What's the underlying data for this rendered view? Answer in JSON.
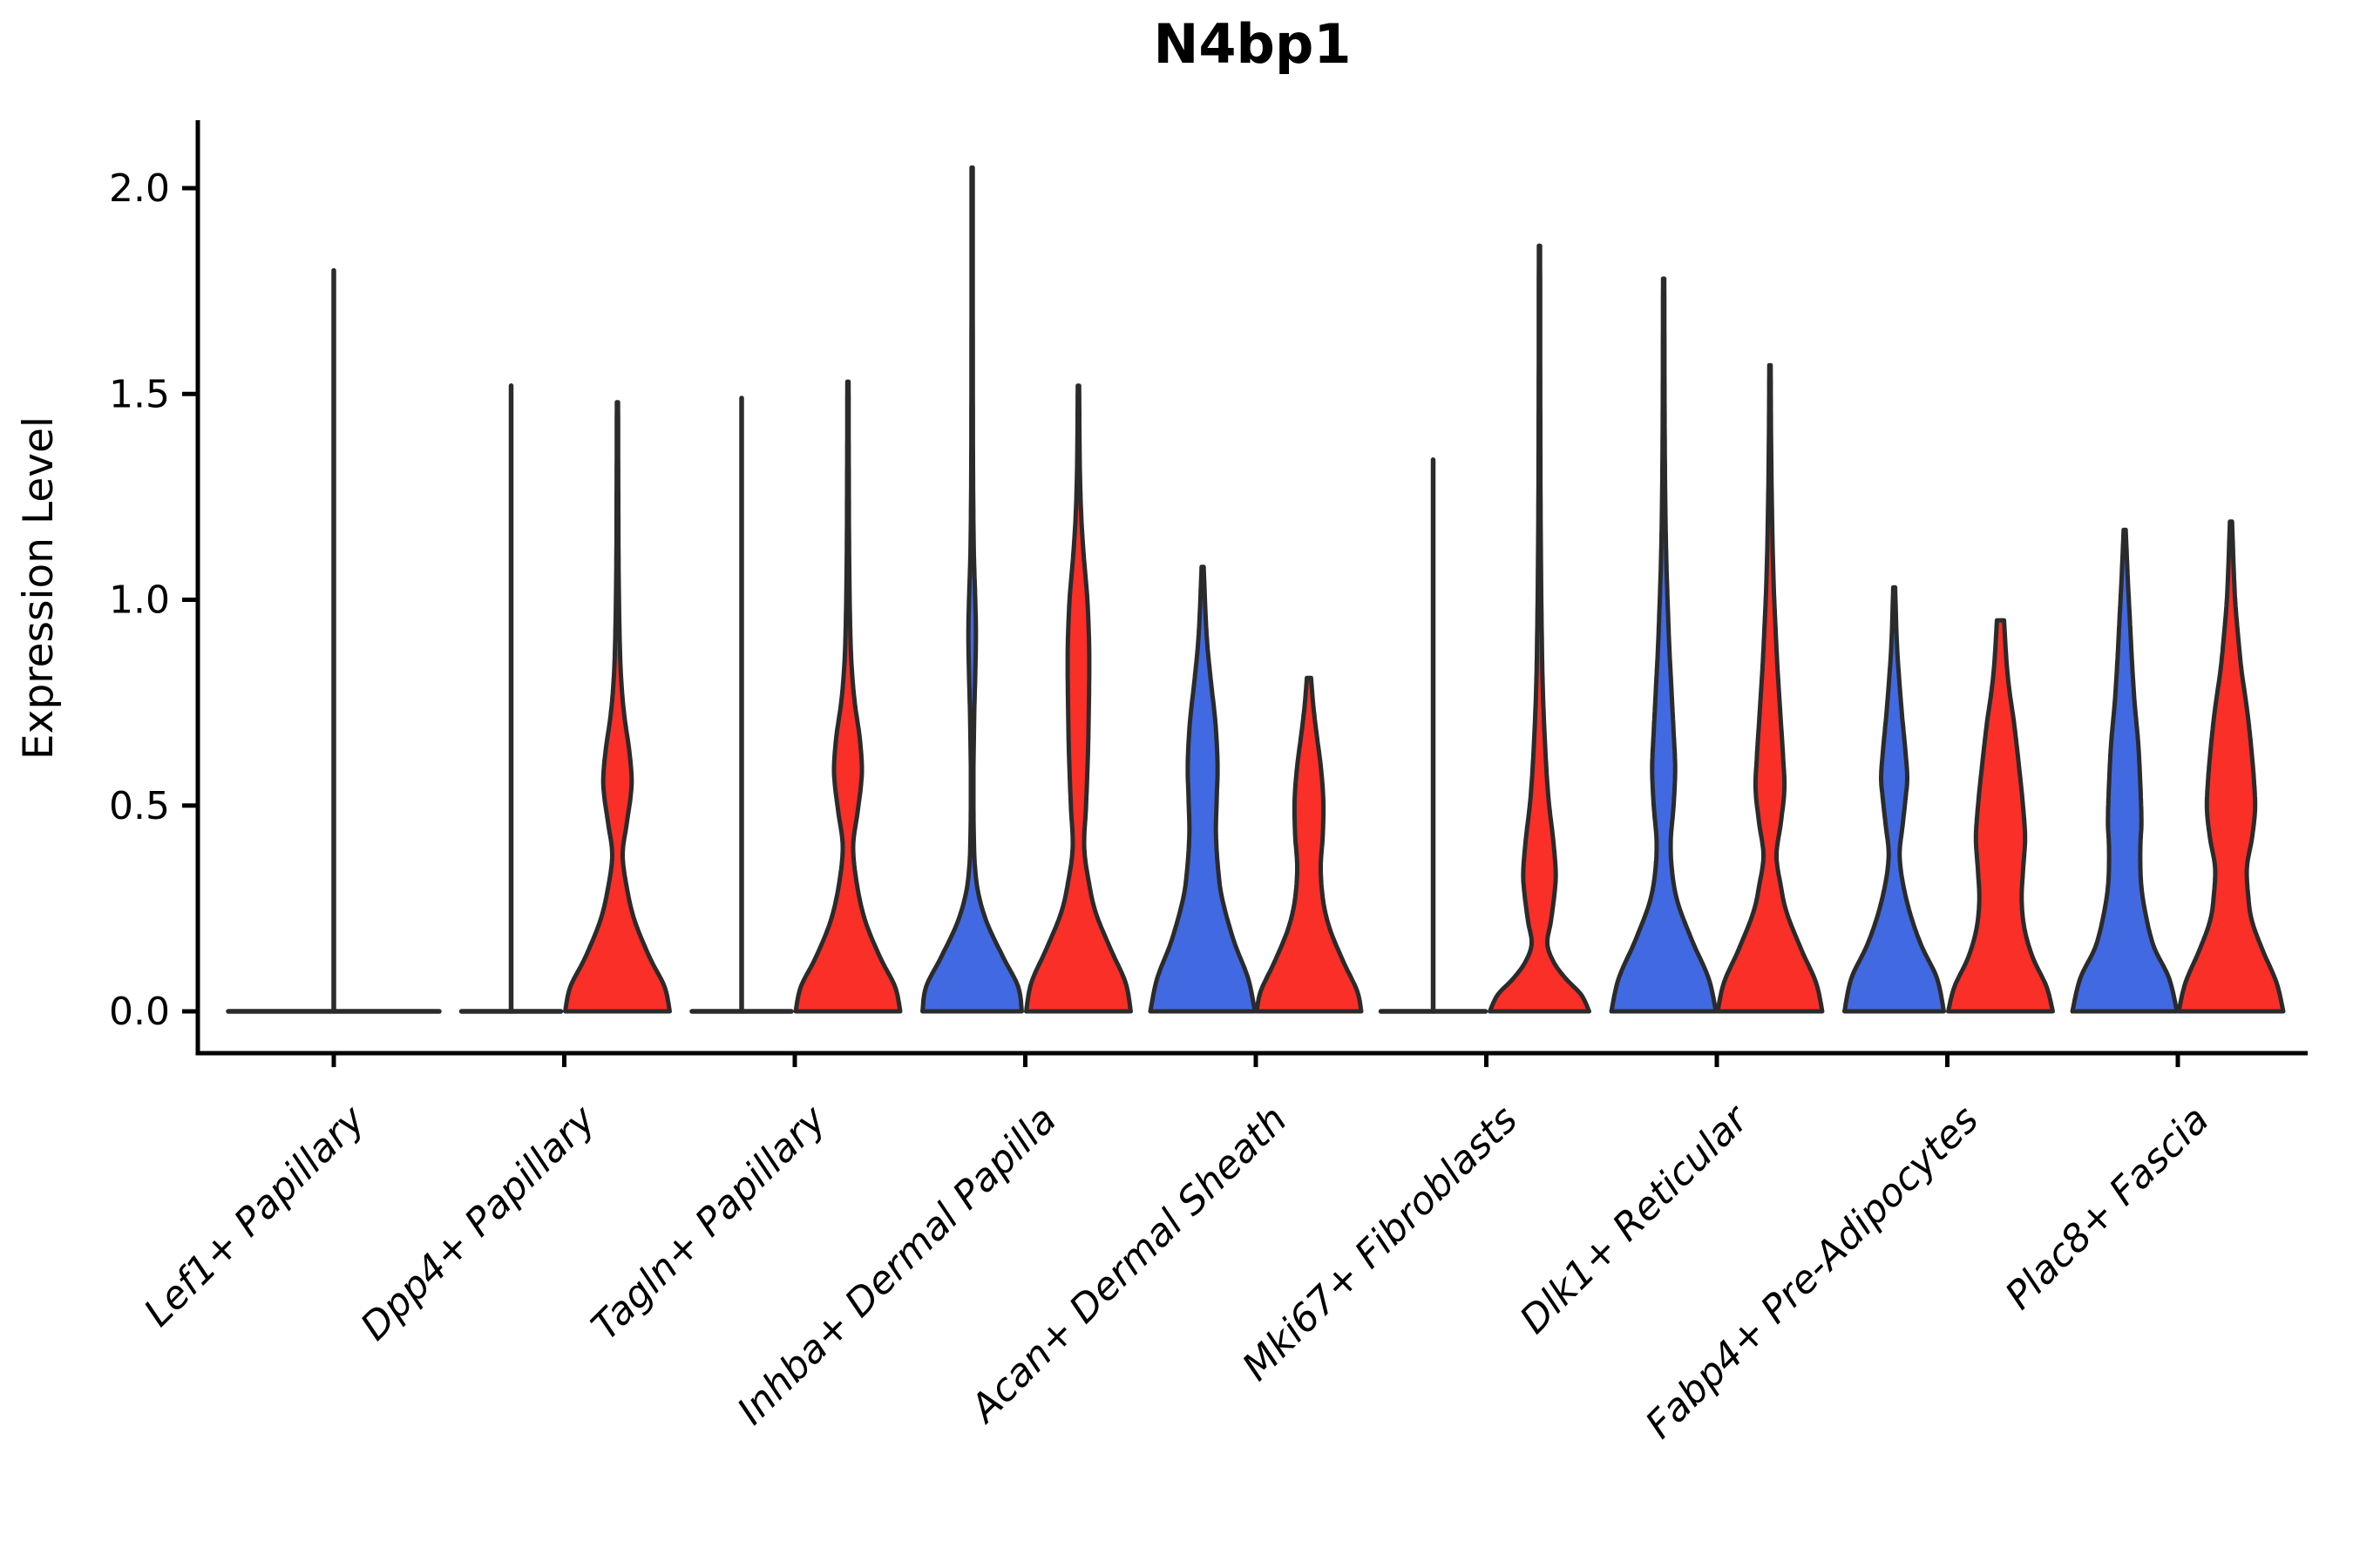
{
  "chart_data": {
    "type": "violin",
    "title": "N4bp1",
    "xlabel": "",
    "ylabel": "Expression Level",
    "ylim": [
      -0.06,
      2.16
    ],
    "grid": false,
    "legend": "none",
    "yticks": [
      {
        "value": 0.0,
        "label": "0.0"
      },
      {
        "value": 0.5,
        "label": "0.5"
      },
      {
        "value": 1.0,
        "label": "1.0"
      },
      {
        "value": 1.5,
        "label": "1.5"
      },
      {
        "value": 2.0,
        "label": "2.0"
      }
    ],
    "colors": {
      "blue_group": "#4169E1",
      "red_group": "#FA2F28",
      "edge": "#2B2B2B",
      "axis": "#000000"
    },
    "categories": [
      "Lef1+ Papillary",
      "Dpp4+ Papillary",
      "Tagln+ Papillary",
      "Inhba+ Dermal Papilla",
      "Acan+ Dermal Sheath",
      "Mki67+ Fibroblasts",
      "Dlk1+ Reticular",
      "Fabp4+ Pre-Adipocytes",
      "Plac8+ Fascia"
    ],
    "violins": [
      {
        "category": "Lef1+ Papillary",
        "parts": [
          {
            "color": "blue_group",
            "offset": 0,
            "halfwidth": 121,
            "max": 1.8,
            "flat": true
          }
        ]
      },
      {
        "category": "Dpp4+ Papillary",
        "parts": [
          {
            "color": "blue_group",
            "offset": -61,
            "halfwidth": 57,
            "max": 1.52,
            "flat": true
          },
          {
            "color": "red_group",
            "offset": 61,
            "halfwidth": 60,
            "max": 1.48,
            "flat": false,
            "profile": [
              [
                0,
                1.0
              ],
              [
                0.06,
                0.9
              ],
              [
                0.13,
                0.62
              ],
              [
                0.22,
                0.33
              ],
              [
                0.3,
                0.18
              ],
              [
                0.38,
                0.1
              ],
              [
                0.45,
                0.17
              ],
              [
                0.52,
                0.25
              ],
              [
                0.57,
                0.27
              ],
              [
                0.64,
                0.22
              ],
              [
                0.72,
                0.13
              ],
              [
                0.81,
                0.07
              ],
              [
                0.92,
                0.04
              ],
              [
                1.08,
                0.022
              ],
              [
                1.3,
                0.015
              ],
              [
                1.48,
                0.012
              ]
            ]
          }
        ]
      },
      {
        "category": "Tagln+ Papillary",
        "parts": [
          {
            "color": "blue_group",
            "offset": -61,
            "halfwidth": 57,
            "max": 1.49,
            "flat": true
          },
          {
            "color": "red_group",
            "offset": 61,
            "halfwidth": 60,
            "max": 1.53,
            "flat": false,
            "profile": [
              [
                0,
                1.0
              ],
              [
                0.06,
                0.9
              ],
              [
                0.13,
                0.62
              ],
              [
                0.22,
                0.33
              ],
              [
                0.31,
                0.17
              ],
              [
                0.4,
                0.1
              ],
              [
                0.48,
                0.18
              ],
              [
                0.55,
                0.25
              ],
              [
                0.6,
                0.265
              ],
              [
                0.67,
                0.22
              ],
              [
                0.75,
                0.13
              ],
              [
                0.84,
                0.07
              ],
              [
                0.95,
                0.04
              ],
              [
                1.12,
                0.022
              ],
              [
                1.35,
                0.015
              ],
              [
                1.53,
                0.012
              ]
            ]
          }
        ]
      },
      {
        "category": "Inhba+ Dermal Papilla",
        "parts": [
          {
            "color": "blue_group",
            "offset": -61,
            "halfwidth": 60,
            "max": 2.05,
            "flat": false,
            "profile": [
              [
                0,
                0.95
              ],
              [
                0.06,
                0.88
              ],
              [
                0.13,
                0.6
              ],
              [
                0.21,
                0.3
              ],
              [
                0.28,
                0.13
              ],
              [
                0.35,
                0.055
              ],
              [
                0.44,
                0.03
              ],
              [
                0.58,
                0.025
              ],
              [
                0.72,
                0.04
              ],
              [
                0.82,
                0.06
              ],
              [
                0.92,
                0.072
              ],
              [
                1.02,
                0.055
              ],
              [
                1.12,
                0.032
              ],
              [
                1.3,
                0.018
              ],
              [
                1.6,
                0.013
              ],
              [
                2.05,
                0.011
              ]
            ]
          },
          {
            "color": "red_group",
            "offset": 61,
            "halfwidth": 60,
            "max": 1.52,
            "flat": false,
            "profile": [
              [
                0,
                1.0
              ],
              [
                0.07,
                0.9
              ],
              [
                0.15,
                0.62
              ],
              [
                0.24,
                0.33
              ],
              [
                0.32,
                0.19
              ],
              [
                0.4,
                0.11
              ],
              [
                0.5,
                0.145
              ],
              [
                0.62,
                0.18
              ],
              [
                0.75,
                0.2
              ],
              [
                0.88,
                0.205
              ],
              [
                1.0,
                0.17
              ],
              [
                1.1,
                0.105
              ],
              [
                1.2,
                0.055
              ],
              [
                1.33,
                0.025
              ],
              [
                1.52,
                0.013
              ]
            ]
          }
        ]
      },
      {
        "category": "Acan+ Dermal Sheath",
        "parts": [
          {
            "color": "blue_group",
            "offset": -61,
            "halfwidth": 60,
            "max": 1.08,
            "flat": false,
            "profile": [
              [
                0,
                1.0
              ],
              [
                0.08,
                0.87
              ],
              [
                0.17,
                0.6
              ],
              [
                0.27,
                0.38
              ],
              [
                0.34,
                0.3
              ],
              [
                0.43,
                0.255
              ],
              [
                0.52,
                0.27
              ],
              [
                0.6,
                0.285
              ],
              [
                0.7,
                0.245
              ],
              [
                0.8,
                0.16
              ],
              [
                0.89,
                0.09
              ],
              [
                0.98,
                0.05
              ],
              [
                1.08,
                0.02
              ]
            ]
          },
          {
            "color": "red_group",
            "offset": 61,
            "halfwidth": 60,
            "max": 0.81,
            "flat": false,
            "profile": [
              [
                0,
                1.0
              ],
              [
                0.05,
                0.92
              ],
              [
                0.12,
                0.66
              ],
              [
                0.2,
                0.4
              ],
              [
                0.27,
                0.27
              ],
              [
                0.35,
                0.225
              ],
              [
                0.43,
                0.265
              ],
              [
                0.51,
                0.275
              ],
              [
                0.59,
                0.23
              ],
              [
                0.67,
                0.15
              ],
              [
                0.74,
                0.085
              ],
              [
                0.81,
                0.04
              ]
            ]
          }
        ]
      },
      {
        "category": "Mki67+ Fibroblasts",
        "parts": [
          {
            "color": "blue_group",
            "offset": -61,
            "halfwidth": 60,
            "max": 1.34,
            "flat": true
          },
          {
            "color": "red_group",
            "offset": 61,
            "halfwidth": 60,
            "max": 1.86,
            "flat": false,
            "profile": [
              [
                0,
                0.95
              ],
              [
                0.04,
                0.8
              ],
              [
                0.08,
                0.5
              ],
              [
                0.12,
                0.27
              ],
              [
                0.165,
                0.15
              ],
              [
                0.22,
                0.22
              ],
              [
                0.29,
                0.29
              ],
              [
                0.34,
                0.31
              ],
              [
                0.42,
                0.26
              ],
              [
                0.52,
                0.17
              ],
              [
                0.64,
                0.11
              ],
              [
                0.78,
                0.065
              ],
              [
                0.95,
                0.04
              ],
              [
                1.2,
                0.022
              ],
              [
                1.5,
                0.015
              ],
              [
                1.86,
                0.012
              ]
            ]
          }
        ]
      },
      {
        "category": "Dlk1+ Reticular",
        "parts": [
          {
            "color": "blue_group",
            "offset": -61,
            "halfwidth": 60,
            "max": 1.78,
            "flat": false,
            "profile": [
              [
                0,
                1.0
              ],
              [
                0.08,
                0.86
              ],
              [
                0.17,
                0.55
              ],
              [
                0.26,
                0.28
              ],
              [
                0.33,
                0.17
              ],
              [
                0.41,
                0.135
              ],
              [
                0.5,
                0.19
              ],
              [
                0.59,
                0.22
              ],
              [
                0.68,
                0.19
              ],
              [
                0.78,
                0.15
              ],
              [
                0.88,
                0.11
              ],
              [
                0.98,
                0.08
              ],
              [
                1.1,
                0.05
              ],
              [
                1.25,
                0.03
              ],
              [
                1.45,
                0.018
              ],
              [
                1.78,
                0.012
              ]
            ]
          },
          {
            "color": "red_group",
            "offset": 61,
            "halfwidth": 60,
            "max": 1.57,
            "flat": false,
            "profile": [
              [
                0,
                1.0
              ],
              [
                0.07,
                0.88
              ],
              [
                0.15,
                0.6
              ],
              [
                0.24,
                0.32
              ],
              [
                0.31,
                0.2
              ],
              [
                0.38,
                0.125
              ],
              [
                0.46,
                0.21
              ],
              [
                0.54,
                0.275
              ],
              [
                0.62,
                0.25
              ],
              [
                0.72,
                0.2
              ],
              [
                0.82,
                0.15
              ],
              [
                0.92,
                0.11
              ],
              [
                1.04,
                0.07
              ],
              [
                1.2,
                0.04
              ],
              [
                1.4,
                0.02
              ],
              [
                1.57,
                0.013
              ]
            ]
          }
        ]
      },
      {
        "category": "Fabp4+ Pre-Adipocytes",
        "parts": [
          {
            "color": "blue_group",
            "offset": -61,
            "halfwidth": 60,
            "max": 1.03,
            "flat": false,
            "profile": [
              [
                0,
                0.95
              ],
              [
                0.08,
                0.82
              ],
              [
                0.16,
                0.52
              ],
              [
                0.24,
                0.3
              ],
              [
                0.32,
                0.155
              ],
              [
                0.385,
                0.105
              ],
              [
                0.45,
                0.16
              ],
              [
                0.52,
                0.22
              ],
              [
                0.57,
                0.25
              ],
              [
                0.64,
                0.21
              ],
              [
                0.72,
                0.15
              ],
              [
                0.8,
                0.1
              ],
              [
                0.9,
                0.05
              ],
              [
                1.03,
                0.018
              ]
            ]
          },
          {
            "color": "red_group",
            "offset": 61,
            "halfwidth": 60,
            "max": 0.95,
            "flat": false,
            "profile": [
              [
                0,
                1.0
              ],
              [
                0.06,
                0.88
              ],
              [
                0.13,
                0.62
              ],
              [
                0.2,
                0.46
              ],
              [
                0.27,
                0.405
              ],
              [
                0.34,
                0.43
              ],
              [
                0.42,
                0.47
              ],
              [
                0.5,
                0.43
              ],
              [
                0.6,
                0.35
              ],
              [
                0.7,
                0.26
              ],
              [
                0.78,
                0.17
              ],
              [
                0.85,
                0.115
              ],
              [
                0.95,
                0.068
              ]
            ]
          }
        ]
      },
      {
        "category": "Plac8+ Fascia",
        "parts": [
          {
            "color": "blue_group",
            "offset": -61,
            "halfwidth": 60,
            "max": 1.17,
            "flat": false,
            "profile": [
              [
                0,
                1.0
              ],
              [
                0.08,
                0.85
              ],
              [
                0.16,
                0.55
              ],
              [
                0.25,
                0.38
              ],
              [
                0.32,
                0.31
              ],
              [
                0.4,
                0.3
              ],
              [
                0.46,
                0.32
              ],
              [
                0.55,
                0.3
              ],
              [
                0.65,
                0.26
              ],
              [
                0.75,
                0.19
              ],
              [
                0.85,
                0.14
              ],
              [
                0.95,
                0.1
              ],
              [
                1.05,
                0.06
              ],
              [
                1.17,
                0.02
              ]
            ]
          },
          {
            "color": "red_group",
            "offset": 61,
            "halfwidth": 60,
            "max": 1.19,
            "flat": false,
            "profile": [
              [
                0,
                1.0
              ],
              [
                0.07,
                0.87
              ],
              [
                0.15,
                0.6
              ],
              [
                0.22,
                0.4
              ],
              [
                0.28,
                0.33
              ],
              [
                0.35,
                0.305
              ],
              [
                0.42,
                0.4
              ],
              [
                0.49,
                0.46
              ],
              [
                0.56,
                0.44
              ],
              [
                0.65,
                0.38
              ],
              [
                0.74,
                0.3
              ],
              [
                0.83,
                0.2
              ],
              [
                0.92,
                0.13
              ],
              [
                1.02,
                0.07
              ],
              [
                1.19,
                0.02
              ]
            ]
          }
        ]
      }
    ]
  }
}
